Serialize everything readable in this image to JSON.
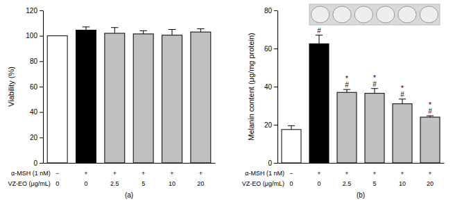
{
  "chart_data": [
    {
      "type": "bar",
      "subplot_label": "(a)",
      "y_label": "Viability (%)",
      "categories": [
        null,
        null,
        null,
        null,
        null,
        null
      ],
      "values": [
        100,
        104.5,
        102,
        101.5,
        100.5,
        103
      ],
      "errors": [
        null,
        2.5,
        4.5,
        2.5,
        4.5,
        2.5
      ],
      "colors": [
        "#ffffff",
        "#000000",
        "#c0c0c0",
        "#c0c0c0",
        "#c0c0c0",
        "#c0c0c0"
      ],
      "treatments": [
        {
          "label": "α-MSH (1 nM)",
          "values": [
            "−",
            "+",
            "+",
            "+",
            "+",
            "+"
          ]
        },
        {
          "label": "VZ-EO (μg/mL)",
          "values": [
            "0",
            "0",
            "2.5",
            "5",
            "10",
            "20"
          ]
        }
      ],
      "ylim": [
        0,
        120
      ],
      "yticks": [
        0,
        20,
        40,
        60,
        80,
        100,
        120
      ]
    },
    {
      "type": "bar",
      "subplot_label": "(b)",
      "y_label": "Melanin content (μg/mg protein)",
      "categories": [
        null,
        null,
        null,
        null,
        null,
        null
      ],
      "values": [
        17.5,
        62.5,
        37,
        36.5,
        31,
        24
      ],
      "errors": [
        2,
        4.5,
        1.5,
        2.5,
        2.5,
        0.7
      ],
      "colors": [
        "#ffffff",
        "#000000",
        "#c0c0c0",
        "#c0c0c0",
        "#c0c0c0",
        "#c0c0c0"
      ],
      "significance": [
        null,
        [
          "#"
        ],
        [
          "*",
          "#"
        ],
        [
          "*",
          "#"
        ],
        [
          "*",
          "#"
        ],
        [
          "*",
          "#"
        ]
      ],
      "treatments": [
        {
          "label": "α-MSH (1 nM)",
          "values": [
            "−",
            "+",
            "+",
            "+",
            "+",
            "+"
          ]
        },
        {
          "label": "VZ-EO (μg/mL)",
          "values": [
            "0",
            "0",
            "2.5",
            "5",
            "10",
            "20"
          ]
        }
      ],
      "ylim": [
        0,
        80
      ],
      "yticks": [
        0,
        20,
        40,
        60,
        80
      ]
    }
  ]
}
